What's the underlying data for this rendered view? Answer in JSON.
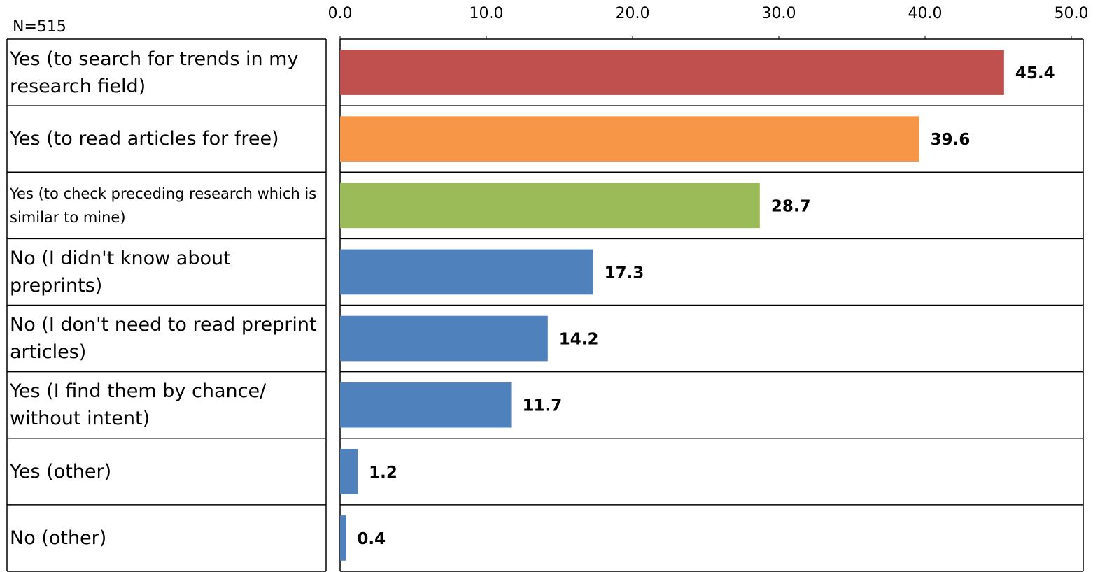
{
  "chart_data": {
    "type": "bar",
    "orientation": "horizontal",
    "note": "N=515",
    "categories": [
      "Yes (to search for trends in my research field)",
      "Yes (to read articles for free)",
      "Yes (to check preceding research which is similar to mine)",
      "No (I didn't know about preprints)",
      "No (I don't need to read preprint articles)",
      "Yes (I find them by chance/ without intent)",
      "Yes (other)",
      "No (other)"
    ],
    "values": [
      45.4,
      39.6,
      28.7,
      17.3,
      14.2,
      11.7,
      1.2,
      0.4
    ],
    "colors": [
      "#c0504d",
      "#f79646",
      "#9bbb59",
      "#4f81bd",
      "#4f81bd",
      "#4f81bd",
      "#4f81bd",
      "#4f81bd"
    ],
    "xlim": [
      0,
      50
    ],
    "xticks": [
      {
        "value": 0,
        "label": "0.0"
      },
      {
        "value": 10,
        "label": "10.0"
      },
      {
        "value": 20,
        "label": "20.0"
      },
      {
        "value": 30,
        "label": "30.0"
      },
      {
        "value": 40,
        "label": "40.0"
      },
      {
        "value": 50,
        "label": "50.0"
      }
    ]
  }
}
